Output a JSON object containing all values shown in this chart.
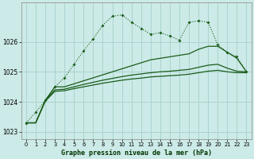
{
  "background_color": "#cceae7",
  "grid_color": "#aad4d0",
  "line_color": "#1a5c1a",
  "title": "Graphe pression niveau de la mer (hPa)",
  "xlim": [
    -0.5,
    23.5
  ],
  "ylim": [
    1022.75,
    1027.3
  ],
  "yticks": [
    1023,
    1024,
    1025,
    1026
  ],
  "xticks": [
    0,
    1,
    2,
    3,
    4,
    5,
    6,
    7,
    8,
    9,
    10,
    11,
    12,
    13,
    14,
    15,
    16,
    17,
    18,
    19,
    20,
    21,
    22,
    23
  ],
  "series_marker": [
    1023.3,
    1023.65,
    1024.05,
    1024.5,
    1024.8,
    1025.25,
    1025.7,
    1026.1,
    1026.55,
    1026.85,
    1026.9,
    1026.65,
    1026.45,
    1026.25,
    1026.3,
    1026.2,
    1026.05,
    1026.65,
    1026.7,
    1026.65,
    1025.9,
    1025.65,
    1025.5,
    1025.0
  ],
  "series_top": [
    1023.3,
    1023.3,
    1024.05,
    1024.5,
    1024.5,
    1024.6,
    1024.7,
    1024.8,
    1024.9,
    1025.0,
    1025.1,
    1025.2,
    1025.3,
    1025.4,
    1025.45,
    1025.5,
    1025.55,
    1025.6,
    1025.75,
    1025.85,
    1025.85,
    1025.65,
    1025.45,
    1025.0
  ],
  "series_mid": [
    1023.3,
    1023.3,
    1024.05,
    1024.4,
    1024.42,
    1024.5,
    1024.58,
    1024.65,
    1024.72,
    1024.78,
    1024.84,
    1024.89,
    1024.93,
    1024.97,
    1025.0,
    1025.02,
    1025.05,
    1025.08,
    1025.15,
    1025.22,
    1025.25,
    1025.12,
    1025.02,
    1025.0
  ],
  "series_bot": [
    1023.3,
    1023.3,
    1024.02,
    1024.35,
    1024.37,
    1024.44,
    1024.5,
    1024.56,
    1024.62,
    1024.67,
    1024.72,
    1024.76,
    1024.79,
    1024.83,
    1024.85,
    1024.87,
    1024.89,
    1024.92,
    1024.97,
    1025.02,
    1025.05,
    1025.0,
    1024.97,
    1024.97
  ]
}
